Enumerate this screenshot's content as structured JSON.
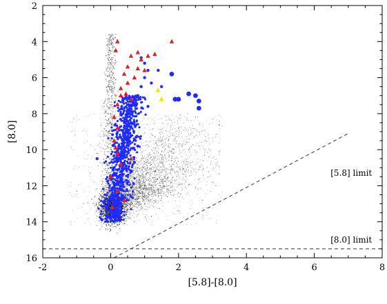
{
  "chart_data": {
    "type": "scatter",
    "xlabel": "[5.8]-[8.0]",
    "ylabel": "[8.0]",
    "xlim": [
      -2,
      8
    ],
    "ylim": [
      16,
      2
    ],
    "y_inverted": true,
    "x_ticks": [
      -2,
      0,
      2,
      4,
      6,
      8
    ],
    "y_ticks": [
      2,
      4,
      6,
      8,
      10,
      12,
      14,
      16
    ],
    "grid": false,
    "legend": "none",
    "annotations": [
      {
        "text": "[5.8] limit",
        "x": 7.7,
        "y": 11.3
      },
      {
        "text": "[8.0] limit",
        "x": 7.7,
        "y": 15.0
      }
    ],
    "limit_lines": [
      {
        "name": "[5.8] limit",
        "style": "dashed",
        "color": "#444444",
        "points": [
          [
            0.1,
            16.0
          ],
          [
            7.0,
            9.1
          ]
        ]
      },
      {
        "name": "[8.0] limit",
        "style": "dashed",
        "color": "#444444",
        "points": [
          [
            -2.0,
            15.5
          ],
          [
            8.0,
            15.5
          ]
        ]
      }
    ],
    "series": [
      {
        "marker": "dot",
        "color": "#000000",
        "description_points": [
          [
            0.0,
            13.8
          ],
          [
            0.1,
            13.5
          ],
          [
            -0.1,
            13.6
          ],
          [
            0.2,
            13.2
          ],
          [
            0.0,
            12.8
          ],
          [
            0.1,
            12.2
          ],
          [
            0.0,
            11.5
          ],
          [
            0.05,
            10.8
          ],
          [
            0.0,
            10.0
          ],
          [
            0.05,
            9.2
          ],
          [
            0.0,
            8.5
          ],
          [
            0.05,
            7.5
          ],
          [
            0.05,
            6.5
          ],
          [
            0.1,
            5.5
          ],
          [
            0.1,
            4.5
          ],
          [
            0.15,
            3.6
          ],
          [
            0.5,
            13.3
          ],
          [
            1.0,
            13.0
          ],
          [
            1.5,
            12.7
          ],
          [
            2.0,
            12.4
          ],
          [
            2.5,
            12.1
          ],
          [
            3.0,
            11.8
          ],
          [
            1.3,
            11.2
          ],
          [
            1.8,
            10.6
          ],
          [
            2.3,
            10.0
          ],
          [
            2.8,
            9.5
          ],
          [
            1.5,
            9.5
          ],
          [
            2.0,
            8.8
          ],
          [
            2.5,
            8.2
          ],
          [
            3.2,
            8.6
          ],
          [
            -0.8,
            13.0
          ],
          [
            -1.0,
            12.3
          ],
          [
            -0.6,
            11.3
          ],
          [
            -0.4,
            10.2
          ],
          [
            0.7,
            14.0
          ],
          [
            1.2,
            13.7
          ],
          [
            2.0,
            13.4
          ],
          [
            2.7,
            12.8
          ],
          [
            3.1,
            12.0
          ],
          [
            1.0,
            12.0
          ],
          [
            0.8,
            11.0
          ],
          [
            2.6,
            11.1
          ]
        ]
      },
      {
        "marker": "circle",
        "color": "#1f2bff",
        "points": [
          [
            0.0,
            13.8
          ],
          [
            0.1,
            13.6
          ],
          [
            0.2,
            13.4
          ],
          [
            -0.1,
            13.7
          ],
          [
            0.3,
            13.5
          ],
          [
            0.1,
            13.0
          ],
          [
            0.2,
            12.5
          ],
          [
            0.3,
            12.0
          ],
          [
            0.2,
            11.5
          ],
          [
            0.35,
            11.0
          ],
          [
            0.3,
            10.5
          ],
          [
            0.4,
            10.0
          ],
          [
            0.5,
            9.5
          ],
          [
            0.45,
            9.0
          ],
          [
            0.6,
            8.5
          ],
          [
            0.55,
            8.0
          ],
          [
            0.7,
            7.5
          ],
          [
            0.8,
            7.0
          ],
          [
            0.9,
            6.5
          ],
          [
            1.0,
            6.0
          ],
          [
            1.1,
            5.6
          ],
          [
            1.0,
            5.2
          ],
          [
            0.9,
            4.9
          ],
          [
            1.2,
            6.3
          ],
          [
            1.4,
            5.6
          ],
          [
            1.5,
            6.5
          ],
          [
            1.8,
            5.8
          ],
          [
            2.0,
            7.2
          ],
          [
            2.3,
            6.9
          ],
          [
            2.5,
            7.0
          ],
          [
            2.6,
            7.3
          ],
          [
            2.6,
            7.7
          ],
          [
            1.9,
            7.2
          ],
          [
            0.6,
            11.2
          ],
          [
            0.7,
            10.7
          ],
          [
            0.8,
            9.8
          ],
          [
            0.35,
            12.6
          ],
          [
            -0.4,
            10.5
          ],
          [
            1.1,
            7.6
          ],
          [
            0.75,
            9.3
          ]
        ]
      },
      {
        "marker": "triangle",
        "color": "#e02020",
        "points": [
          [
            0.2,
            4.0
          ],
          [
            0.15,
            4.5
          ],
          [
            0.6,
            4.8
          ],
          [
            0.8,
            4.6
          ],
          [
            0.9,
            5.0
          ],
          [
            1.1,
            4.8
          ],
          [
            1.3,
            4.7
          ],
          [
            1.8,
            4.0
          ],
          [
            0.5,
            5.4
          ],
          [
            0.4,
            5.8
          ],
          [
            0.7,
            6.0
          ],
          [
            0.5,
            6.3
          ],
          [
            0.3,
            6.6
          ],
          [
            0.3,
            7.0
          ],
          [
            0.2,
            7.5
          ],
          [
            0.1,
            8.2
          ],
          [
            0.2,
            8.8
          ],
          [
            0.1,
            9.5
          ],
          [
            0.2,
            10.2
          ],
          [
            0.3,
            10.8
          ],
          [
            0.0,
            11.5
          ],
          [
            0.2,
            12.3
          ],
          [
            0.4,
            12.8
          ],
          [
            0.6,
            10.5
          ],
          [
            0.8,
            5.5
          ],
          [
            1.0,
            5.6
          ],
          [
            0.6,
            7.2
          ],
          [
            0.45,
            6.9
          ],
          [
            0.15,
            9.9
          ],
          [
            0.05,
            13.2
          ]
        ]
      },
      {
        "marker": "triangle",
        "color": "#f2e600",
        "points": [
          [
            1.4,
            6.7
          ],
          [
            1.5,
            7.2
          ]
        ]
      }
    ]
  }
}
